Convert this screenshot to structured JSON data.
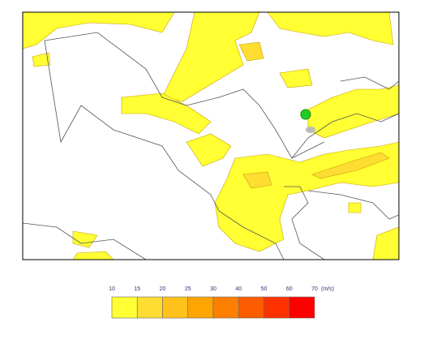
{
  "legend": {
    "ticks": [
      10,
      15,
      20,
      25,
      30,
      40,
      50,
      60,
      70
    ],
    "unit": "(m/s)",
    "colors": [
      "#ffff33",
      "#ffdd33",
      "#ffc21a",
      "#ffa500",
      "#ff8000",
      "#ff5c00",
      "#ff3300",
      "#ff0000"
    ]
  }
}
